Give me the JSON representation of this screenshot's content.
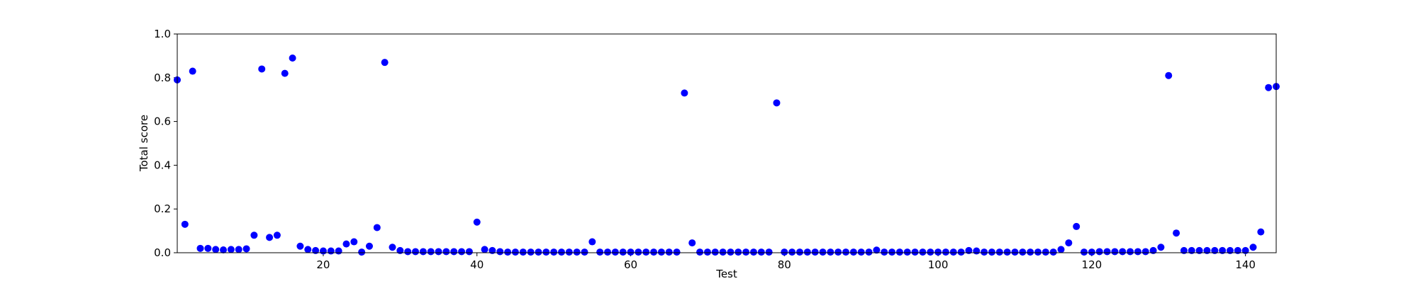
{
  "chart_data": {
    "type": "scatter",
    "xlabel": "Test",
    "ylabel": "Total score",
    "color": "#0000ff",
    "x": [
      1,
      2,
      3,
      4,
      5,
      6,
      7,
      8,
      9,
      10,
      11,
      12,
      13,
      14,
      15,
      16,
      17,
      18,
      19,
      20,
      21,
      22,
      23,
      24,
      25,
      26,
      27,
      28,
      29,
      30,
      31,
      32,
      33,
      34,
      35,
      36,
      37,
      38,
      39,
      40,
      41,
      42,
      43,
      44,
      45,
      46,
      47,
      48,
      49,
      50,
      51,
      52,
      53,
      54,
      55,
      56,
      57,
      58,
      59,
      60,
      61,
      62,
      63,
      64,
      65,
      66,
      67,
      68,
      69,
      70,
      71,
      72,
      73,
      74,
      75,
      76,
      77,
      78,
      79,
      80,
      81,
      82,
      83,
      84,
      85,
      86,
      87,
      88,
      89,
      90,
      91,
      92,
      93,
      94,
      95,
      96,
      97,
      98,
      99,
      100,
      101,
      102,
      103,
      104,
      105,
      106,
      107,
      108,
      109,
      110,
      111,
      112,
      113,
      114,
      115,
      116,
      117,
      118,
      119,
      120,
      121,
      122,
      123,
      124,
      125,
      126,
      127,
      128,
      129,
      130,
      131,
      132,
      133,
      134,
      135,
      136,
      137,
      138,
      139,
      140,
      141,
      142,
      143,
      144
    ],
    "values": [
      0.79,
      0.13,
      0.83,
      0.02,
      0.02,
      0.015,
      0.013,
      0.015,
      0.015,
      0.018,
      0.08,
      0.84,
      0.07,
      0.08,
      0.82,
      0.89,
      0.03,
      0.015,
      0.01,
      0.008,
      0.008,
      0.008,
      0.04,
      0.05,
      0.003,
      0.03,
      0.115,
      0.87,
      0.025,
      0.01,
      0.005,
      0.005,
      0.005,
      0.005,
      0.005,
      0.005,
      0.005,
      0.005,
      0.005,
      0.14,
      0.015,
      0.01,
      0.005,
      0.003,
      0.003,
      0.003,
      0.003,
      0.003,
      0.003,
      0.003,
      0.003,
      0.003,
      0.003,
      0.003,
      0.05,
      0.003,
      0.003,
      0.003,
      0.003,
      0.003,
      0.003,
      0.003,
      0.003,
      0.003,
      0.003,
      0.003,
      0.73,
      0.045,
      0.003,
      0.003,
      0.003,
      0.003,
      0.003,
      0.003,
      0.003,
      0.003,
      0.003,
      0.003,
      0.685,
      0.003,
      0.003,
      0.003,
      0.003,
      0.003,
      0.003,
      0.003,
      0.003,
      0.003,
      0.003,
      0.003,
      0.003,
      0.012,
      0.003,
      0.003,
      0.003,
      0.003,
      0.003,
      0.003,
      0.003,
      0.003,
      0.003,
      0.003,
      0.003,
      0.01,
      0.008,
      0.003,
      0.003,
      0.003,
      0.003,
      0.003,
      0.003,
      0.003,
      0.003,
      0.003,
      0.003,
      0.015,
      0.045,
      0.12,
      0.003,
      0.003,
      0.005,
      0.005,
      0.005,
      0.005,
      0.005,
      0.005,
      0.005,
      0.01,
      0.025,
      0.81,
      0.09,
      0.01,
      0.01,
      0.01,
      0.01,
      0.01,
      0.01,
      0.01,
      0.01,
      0.01,
      0.025,
      0.095,
      0.755,
      0.76
    ],
    "xlim": [
      1,
      144
    ],
    "xticks": [
      20,
      40,
      60,
      80,
      100,
      120,
      140
    ],
    "ylim": [
      0,
      1
    ],
    "yticks": [
      {
        "value": 0,
        "label": "0.0"
      },
      {
        "value": 0.2,
        "label": "0.2"
      },
      {
        "value": 0.4,
        "label": "0.4"
      },
      {
        "value": 0.6,
        "label": "0.6"
      },
      {
        "value": 0.8,
        "label": "0.8"
      },
      {
        "value": 1,
        "label": "1.0"
      }
    ]
  }
}
